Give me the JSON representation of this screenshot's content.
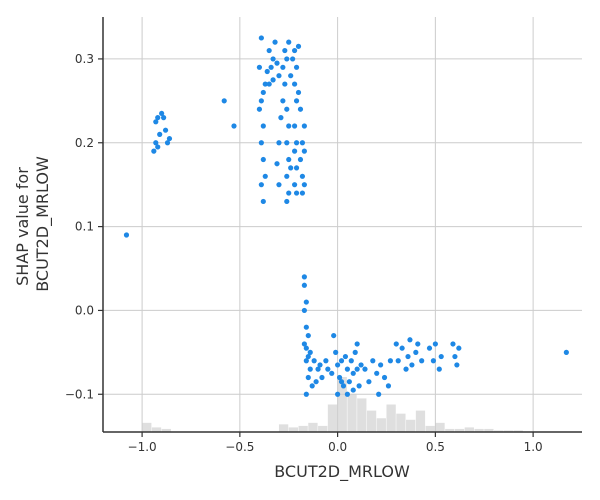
{
  "chart_data": {
    "type": "scatter",
    "xlabel": "BCUT2D_MRLOW",
    "ylabel_lines": [
      "SHAP value for",
      "BCUT2D_MRLOW"
    ],
    "xlim": [
      -1.2,
      1.25
    ],
    "ylim": [
      -0.145,
      0.35
    ],
    "x_ticks": [
      -1.0,
      -0.5,
      0.0,
      0.5,
      1.0
    ],
    "x_tick_labels": [
      "−1.0",
      "−0.5",
      "0.0",
      "0.5",
      "1.0"
    ],
    "y_ticks": [
      -0.1,
      0.0,
      0.1,
      0.2,
      0.3
    ],
    "y_tick_labels": [
      "−0.1",
      "0.0",
      "0.1",
      "0.2",
      "0.3"
    ],
    "grid": true,
    "point_color": "#1e88e5",
    "histogram_color": "#d9d9d9",
    "points": [
      [
        -1.08,
        0.09
      ],
      [
        -0.94,
        0.19
      ],
      [
        -0.93,
        0.2
      ],
      [
        -0.92,
        0.195
      ],
      [
        -0.91,
        0.21
      ],
      [
        -0.93,
        0.225
      ],
      [
        -0.9,
        0.235
      ],
      [
        -0.89,
        0.23
      ],
      [
        -0.88,
        0.215
      ],
      [
        -0.87,
        0.2
      ],
      [
        -0.86,
        0.205
      ],
      [
        -0.92,
        0.23
      ],
      [
        -0.58,
        0.25
      ],
      [
        -0.53,
        0.22
      ],
      [
        -0.39,
        0.325
      ],
      [
        -0.4,
        0.29
      ],
      [
        -0.38,
        0.26
      ],
      [
        -0.37,
        0.27
      ],
      [
        -0.39,
        0.25
      ],
      [
        -0.4,
        0.24
      ],
      [
        -0.38,
        0.22
      ],
      [
        -0.39,
        0.2
      ],
      [
        -0.38,
        0.18
      ],
      [
        -0.39,
        0.15
      ],
      [
        -0.38,
        0.13
      ],
      [
        -0.37,
        0.16
      ],
      [
        -0.35,
        0.31
      ],
      [
        -0.34,
        0.29
      ],
      [
        -0.33,
        0.3
      ],
      [
        -0.32,
        0.32
      ],
      [
        -0.31,
        0.295
      ],
      [
        -0.3,
        0.28
      ],
      [
        -0.36,
        0.285
      ],
      [
        -0.35,
        0.27
      ],
      [
        -0.33,
        0.275
      ],
      [
        -0.3,
        0.2
      ],
      [
        -0.31,
        0.175
      ],
      [
        -0.3,
        0.15
      ],
      [
        -0.29,
        0.23
      ],
      [
        -0.28,
        0.25
      ],
      [
        -0.27,
        0.27
      ],
      [
        -0.28,
        0.29
      ],
      [
        -0.27,
        0.31
      ],
      [
        -0.26,
        0.3
      ],
      [
        -0.25,
        0.32
      ],
      [
        -0.26,
        0.24
      ],
      [
        -0.25,
        0.22
      ],
      [
        -0.26,
        0.2
      ],
      [
        -0.25,
        0.18
      ],
      [
        -0.26,
        0.16
      ],
      [
        -0.25,
        0.14
      ],
      [
        -0.26,
        0.13
      ],
      [
        -0.24,
        0.17
      ],
      [
        -0.24,
        0.28
      ],
      [
        -0.23,
        0.3
      ],
      [
        -0.22,
        0.31
      ],
      [
        -0.21,
        0.29
      ],
      [
        -0.22,
        0.27
      ],
      [
        -0.21,
        0.25
      ],
      [
        -0.22,
        0.22
      ],
      [
        -0.21,
        0.2
      ],
      [
        -0.22,
        0.19
      ],
      [
        -0.21,
        0.17
      ],
      [
        -0.22,
        0.15
      ],
      [
        -0.21,
        0.14
      ],
      [
        -0.2,
        0.315
      ],
      [
        -0.2,
        0.26
      ],
      [
        -0.19,
        0.24
      ],
      [
        -0.18,
        0.2
      ],
      [
        -0.19,
        0.18
      ],
      [
        -0.18,
        0.16
      ],
      [
        -0.17,
        0.15
      ],
      [
        -0.18,
        0.14
      ],
      [
        -0.17,
        0.19
      ],
      [
        -0.17,
        0.22
      ],
      [
        -0.17,
        0.04
      ],
      [
        -0.17,
        0.03
      ],
      [
        -0.16,
        0.01
      ],
      [
        -0.17,
        0.0
      ],
      [
        -0.16,
        -0.02
      ],
      [
        -0.17,
        -0.04
      ],
      [
        -0.16,
        -0.06
      ],
      [
        -0.15,
        -0.08
      ],
      [
        -0.16,
        -0.1
      ],
      [
        -0.14,
        -0.05
      ],
      [
        -0.15,
        -0.03
      ],
      [
        -0.14,
        -0.07
      ],
      [
        -0.13,
        -0.09
      ],
      [
        -0.16,
        -0.045
      ],
      [
        -0.15,
        -0.055
      ],
      [
        -0.12,
        -0.06
      ],
      [
        -0.1,
        -0.07
      ],
      [
        -0.08,
        -0.08
      ],
      [
        -0.06,
        -0.06
      ],
      [
        -0.05,
        -0.07
      ],
      [
        -0.03,
        -0.075
      ],
      [
        -0.11,
        -0.085
      ],
      [
        -0.09,
        -0.065
      ],
      [
        -0.02,
        -0.03
      ],
      [
        -0.01,
        -0.05
      ],
      [
        0.0,
        -0.065
      ],
      [
        0.01,
        -0.08
      ],
      [
        0.02,
        -0.06
      ],
      [
        0.03,
        -0.09
      ],
      [
        0.04,
        -0.055
      ],
      [
        0.05,
        -0.07
      ],
      [
        0.06,
        -0.085
      ],
      [
        0.07,
        -0.06
      ],
      [
        0.08,
        -0.075
      ],
      [
        0.09,
        -0.05
      ],
      [
        0.1,
        -0.07
      ],
      [
        0.11,
        -0.09
      ],
      [
        0.12,
        -0.065
      ],
      [
        0.0,
        -0.1
      ],
      [
        0.02,
        -0.085
      ],
      [
        0.05,
        -0.1
      ],
      [
        0.08,
        -0.095
      ],
      [
        0.1,
        -0.04
      ],
      [
        0.14,
        -0.07
      ],
      [
        0.16,
        -0.085
      ],
      [
        0.18,
        -0.06
      ],
      [
        0.2,
        -0.075
      ],
      [
        0.21,
        -0.1
      ],
      [
        0.22,
        -0.065
      ],
      [
        0.24,
        -0.08
      ],
      [
        0.26,
        -0.09
      ],
      [
        0.27,
        -0.06
      ],
      [
        0.3,
        -0.04
      ],
      [
        0.31,
        -0.06
      ],
      [
        0.33,
        -0.045
      ],
      [
        0.35,
        -0.07
      ],
      [
        0.36,
        -0.055
      ],
      [
        0.37,
        -0.035
      ],
      [
        0.38,
        -0.065
      ],
      [
        0.4,
        -0.05
      ],
      [
        0.41,
        -0.04
      ],
      [
        0.43,
        -0.06
      ],
      [
        0.47,
        -0.045
      ],
      [
        0.49,
        -0.06
      ],
      [
        0.5,
        -0.04
      ],
      [
        0.52,
        -0.07
      ],
      [
        0.53,
        -0.055
      ],
      [
        0.59,
        -0.04
      ],
      [
        0.6,
        -0.055
      ],
      [
        0.61,
        -0.065
      ],
      [
        0.62,
        -0.045
      ],
      [
        1.17,
        -0.05
      ]
    ],
    "histogram": {
      "bin_start": -1.0,
      "bin_width": 0.05,
      "counts": [
        6,
        3,
        2,
        0,
        0,
        0,
        0,
        0,
        0,
        0,
        0,
        0,
        0,
        0,
        5,
        3,
        4,
        6,
        4,
        18,
        36,
        25,
        22,
        14,
        9,
        18,
        12,
        8,
        14,
        4,
        6,
        2,
        2,
        3,
        2,
        2,
        1,
        1,
        1,
        0,
        0,
        0,
        0
      ]
    }
  }
}
